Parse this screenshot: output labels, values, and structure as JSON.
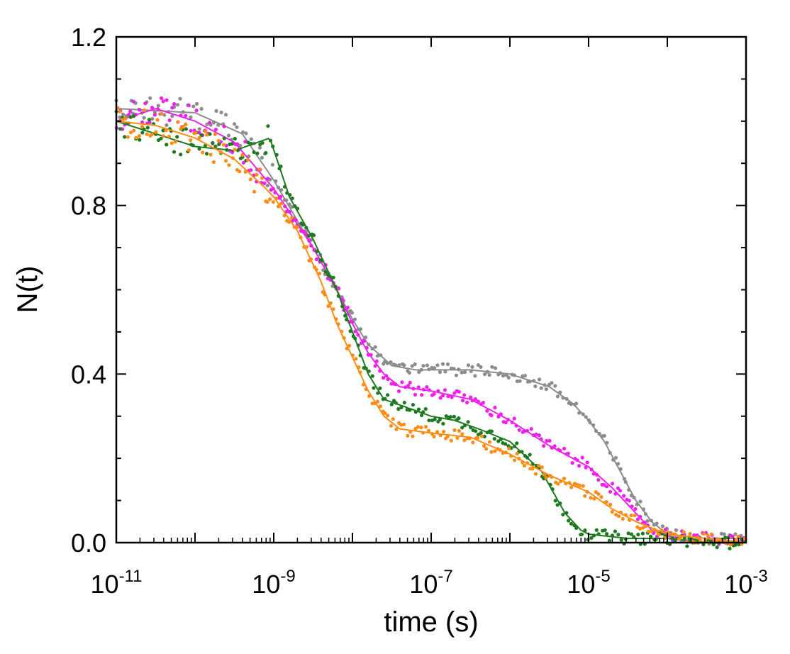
{
  "chart_data": {
    "type": "scatter",
    "title": "",
    "xlabel": "time (s)",
    "ylabel": "N(t)",
    "xscale": "log",
    "xlim": [
      1e-11,
      0.001
    ],
    "ylim": [
      0.0,
      1.2
    ],
    "x_ticks": [
      {
        "base": "10",
        "exp": "-11"
      },
      {
        "base": "10",
        "exp": "-9"
      },
      {
        "base": "10",
        "exp": "-7"
      },
      {
        "base": "10",
        "exp": "-5"
      },
      {
        "base": "10",
        "exp": "-3"
      }
    ],
    "y_ticks": [
      "0.0",
      "0.4",
      "0.8",
      "1.2"
    ],
    "grid": false,
    "legend": "none",
    "series": [
      {
        "name": "gray",
        "color": "#8c8c8c",
        "log10_x": [
          -11,
          -10,
          -9.4,
          -9,
          -8.5,
          -8.2,
          -8,
          -7.8,
          -7.5,
          -7.2,
          -7,
          -6.5,
          -6,
          -5.5,
          -5.2,
          -5,
          -4.8,
          -4.6,
          -4.4,
          -4.2,
          -4,
          -3.5,
          -3
        ],
        "values": [
          1.03,
          1.02,
          0.97,
          0.86,
          0.7,
          0.6,
          0.53,
          0.47,
          0.42,
          0.41,
          0.41,
          0.41,
          0.4,
          0.37,
          0.33,
          0.29,
          0.24,
          0.17,
          0.1,
          0.05,
          0.02,
          0.01,
          0.01
        ]
      },
      {
        "name": "magenta",
        "color": "#ee20ee",
        "log10_x": [
          -11,
          -10.5,
          -10,
          -9.5,
          -9,
          -8.5,
          -8.2,
          -8,
          -7.8,
          -7.6,
          -7.4,
          -7,
          -6.5,
          -6,
          -5.5,
          -5,
          -4.7,
          -4.4,
          -4.2,
          -4,
          -3.5,
          -3
        ],
        "values": [
          1.0,
          1.03,
          1.0,
          0.95,
          0.84,
          0.7,
          0.6,
          0.52,
          0.45,
          0.4,
          0.37,
          0.36,
          0.34,
          0.29,
          0.23,
          0.18,
          0.13,
          0.07,
          0.03,
          0.02,
          0.01,
          0.0
        ]
      },
      {
        "name": "green",
        "color": "#1e7a1e",
        "log10_x": [
          -11,
          -10.5,
          -10,
          -9.5,
          -9.05,
          -8.8,
          -8.5,
          -8.2,
          -8,
          -7.8,
          -7.6,
          -7.3,
          -7,
          -6.7,
          -6.4,
          -6,
          -5.6,
          -5.3,
          -5.1,
          -5,
          -4.5,
          -4,
          -3.5,
          -3
        ],
        "values": [
          1.0,
          0.97,
          0.94,
          0.93,
          0.96,
          0.82,
          0.72,
          0.6,
          0.5,
          0.4,
          0.34,
          0.32,
          0.3,
          0.29,
          0.27,
          0.24,
          0.17,
          0.07,
          0.03,
          0.02,
          0.01,
          0.01,
          0.0,
          0.0
        ]
      },
      {
        "name": "orange",
        "color": "#ff8c14",
        "log10_x": [
          -11,
          -10.5,
          -10,
          -9.5,
          -9.1,
          -9,
          -8.7,
          -8.4,
          -8.2,
          -8,
          -7.8,
          -7.6,
          -7.4,
          -7,
          -6.5,
          -6,
          -5.5,
          -5,
          -4.7,
          -4.4,
          -4,
          -3.5,
          -3
        ],
        "values": [
          1.0,
          0.99,
          0.96,
          0.91,
          0.84,
          0.82,
          0.74,
          0.62,
          0.52,
          0.44,
          0.36,
          0.3,
          0.27,
          0.26,
          0.25,
          0.21,
          0.16,
          0.12,
          0.08,
          0.05,
          0.02,
          0.01,
          0.0
        ]
      }
    ]
  }
}
